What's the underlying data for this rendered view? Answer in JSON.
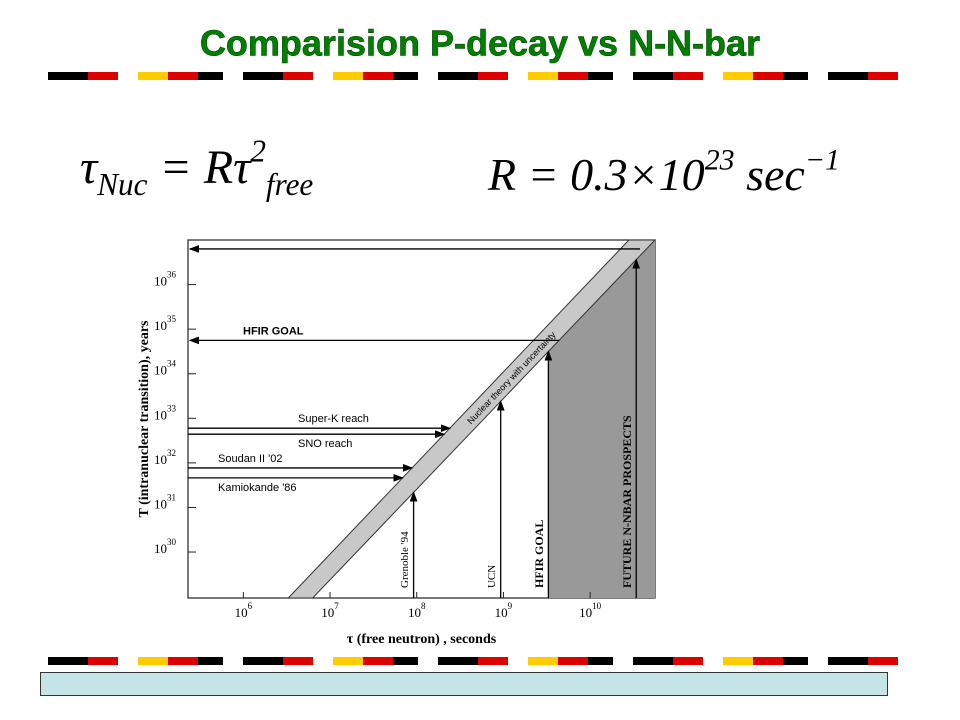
{
  "title": "Comparision P-decay vs N-N-bar",
  "formula_left": [
    {
      "text": "τ",
      "style": "base"
    },
    {
      "text": "Nuc",
      "style": "sub"
    },
    {
      "text": " = Rτ",
      "style": "base"
    },
    {
      "text": "2",
      "style": "sup"
    },
    {
      "text": "free",
      "style": "sub"
    }
  ],
  "formula_right": [
    {
      "text": "R = 0.3×10",
      "style": "base"
    },
    {
      "text": "23",
      "style": "sup"
    },
    {
      "text": " sec",
      "style": "base"
    },
    {
      "text": "−1",
      "style": "sup"
    }
  ],
  "chart_data": {
    "type": "band-limits",
    "x_label": "τ (free neutron) , seconds",
    "y_label": "T (intranuclear transition), years",
    "xscale": "log",
    "yscale": "log",
    "xlim": [
      230000,
      56000000000
    ],
    "ylim": [
      9.3e+28,
      1e+37
    ],
    "xticks": [
      {
        "value": 1000000,
        "label": "10^6"
      },
      {
        "value": 10000000,
        "label": "10^7"
      },
      {
        "value": 100000000,
        "label": "10^8"
      },
      {
        "value": 1000000000,
        "label": "10^9"
      },
      {
        "value": 10000000000,
        "label": "10^10"
      }
    ],
    "yticks": [
      {
        "value": 1e+30,
        "label": "10^30"
      },
      {
        "value": 1e+31,
        "label": "10^31"
      },
      {
        "value": 1e+32,
        "label": "10^32"
      },
      {
        "value": 1e+33,
        "label": "10^33"
      },
      {
        "value": 1e+34,
        "label": "10^34"
      },
      {
        "value": 1e+35,
        "label": "10^35"
      },
      {
        "value": 1e+36,
        "label": "10^36"
      }
    ],
    "band": {
      "name": "Nuclear theory with uncertainty",
      "color": "#c8c8c8",
      "upper_x": [
        3300000,
        28000000000
      ],
      "upper_y": [
        9.3e+28,
        1e+37
      ],
      "lower_x": [
        6300000,
        56000000000
      ],
      "lower_y": [
        9.3e+28,
        1e+37
      ]
    },
    "horizontal_limits": [
      {
        "value": 6.3e+36,
        "arrow": "left"
      },
      {
        "name": "HFIR  GOAL",
        "value": 5.6e+34,
        "arrow": "left",
        "label_position": "above"
      },
      {
        "name": "Super-K reach",
        "value": 6e+32,
        "arrow": "right",
        "label_position": "above"
      },
      {
        "name": "SNO reach",
        "value": 4.4e+32,
        "arrow": "right",
        "label_position": "below"
      },
      {
        "name": "Soudan II '02",
        "value": 7.7e+31,
        "arrow": "right",
        "label_position": "above"
      },
      {
        "name": "Kamiokande '86",
        "value": 4.6e+31,
        "arrow": "right",
        "label_position": "below"
      }
    ],
    "vertical_limits": [
      {
        "name": "Grenoble '94",
        "value": 92000000
      },
      {
        "name": "UCN",
        "value": 930000000
      },
      {
        "name": "HFIR  GOAL",
        "value": 3300000000
      },
      {
        "name": "FUTURE  N-NBAR PROSPECTS",
        "value": 34000000000
      }
    ],
    "shade_color": "#999999"
  }
}
